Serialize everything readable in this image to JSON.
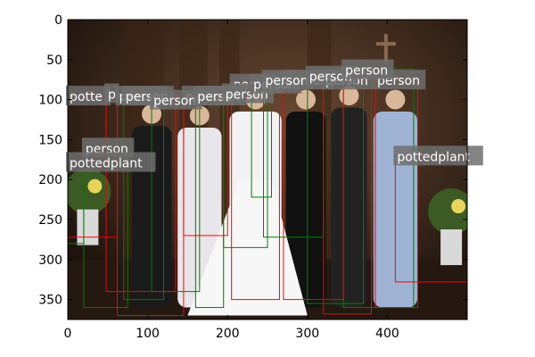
{
  "chart_data": {
    "type": "image_with_detection_boxes",
    "image_extent": {
      "width": 500,
      "height": 375
    },
    "xlim": [
      0,
      500
    ],
    "ylim": [
      375,
      0
    ],
    "xticks": [
      0,
      100,
      200,
      300,
      400
    ],
    "yticks": [
      0,
      50,
      100,
      150,
      200,
      250,
      300,
      350
    ],
    "grid": false,
    "legend": "none",
    "colors": {
      "red_box": "#ff0000",
      "green_box": "#008000",
      "label_bg": "#6e6e6e",
      "scene_wall": "#3b2416",
      "scene_floor": "#241810"
    },
    "red_boxes": [
      {
        "label": "potte",
        "x0": 0,
        "y0": 95,
        "x1": 62,
        "y1": 272
      },
      {
        "label": "p",
        "x0": 48,
        "y0": 92,
        "x1": 135,
        "y1": 340
      },
      {
        "label": "person",
        "x0": 62,
        "y0": 95,
        "x1": 145,
        "y1": 370
      },
      {
        "label": "person",
        "x0": 145,
        "y0": 95,
        "x1": 200,
        "y1": 270
      },
      {
        "label": "person",
        "x0": 205,
        "y0": 80,
        "x1": 265,
        "y1": 350
      },
      {
        "label": "person",
        "x0": 270,
        "y0": 75,
        "x1": 345,
        "y1": 350
      },
      {
        "label": "person",
        "x0": 320,
        "y0": 75,
        "x1": 380,
        "y1": 368
      },
      {
        "label": "person",
        "x0": 385,
        "y0": 75,
        "x1": 438,
        "y1": 360
      },
      {
        "label": "pottedplant",
        "x0": 410,
        "y0": 170,
        "x1": 500,
        "y1": 328
      }
    ],
    "green_boxes": [
      {
        "label": "person",
        "x0": 20,
        "y0": 160,
        "x1": 75,
        "y1": 360
      },
      {
        "label": "pottedplant",
        "x0": 0,
        "y0": 178,
        "x1": 20,
        "y1": 280
      },
      {
        "label": "person",
        "x0": 70,
        "y0": 95,
        "x1": 120,
        "y1": 350
      },
      {
        "label": "person",
        "x0": 105,
        "y0": 100,
        "x1": 165,
        "y1": 340
      },
      {
        "label": "person",
        "x0": 160,
        "y0": 95,
        "x1": 195,
        "y1": 360
      },
      {
        "label": "person",
        "x0": 195,
        "y0": 92,
        "x1": 250,
        "y1": 285
      },
      {
        "label": "person",
        "x0": 230,
        "y0": 80,
        "x1": 255,
        "y1": 222
      },
      {
        "label": "person",
        "x0": 245,
        "y0": 75,
        "x1": 320,
        "y1": 272
      },
      {
        "label": "person",
        "x0": 300,
        "y0": 70,
        "x1": 370,
        "y1": 355
      },
      {
        "label": "person",
        "x0": 345,
        "y0": 62,
        "x1": 433,
        "y1": 360
      }
    ]
  }
}
